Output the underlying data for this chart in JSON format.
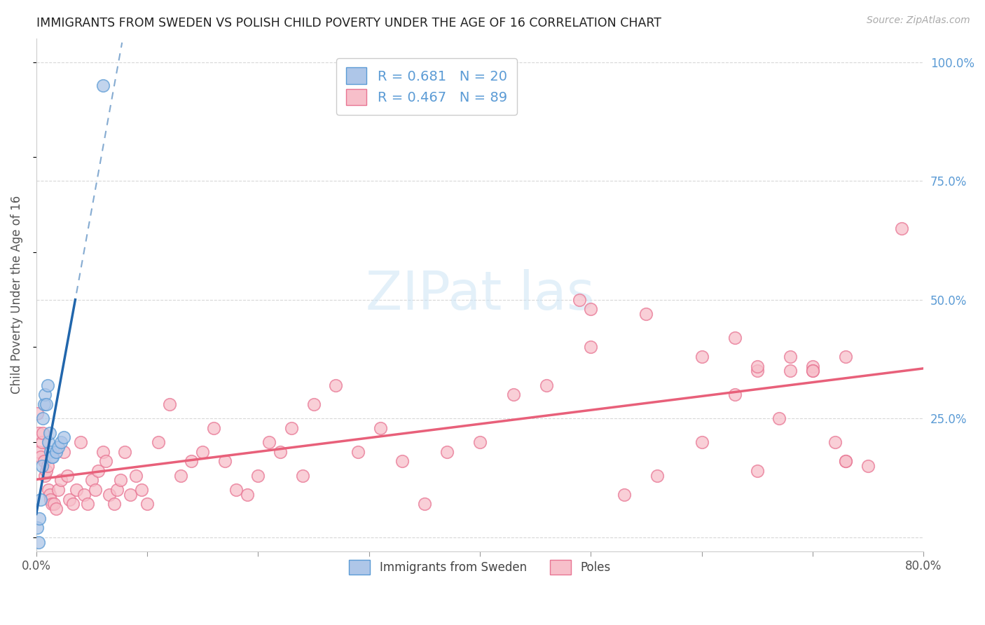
{
  "title": "IMMIGRANTS FROM SWEDEN VS POLISH CHILD POVERTY UNDER THE AGE OF 16 CORRELATION CHART",
  "source": "Source: ZipAtlas.com",
  "ylabel": "Child Poverty Under the Age of 16",
  "x_min": 0.0,
  "x_max": 0.8,
  "y_min": -0.03,
  "y_max": 1.05,
  "y_ticks": [
    0.0,
    0.25,
    0.5,
    0.75,
    1.0
  ],
  "y_tick_labels_right": [
    "",
    "25.0%",
    "50.0%",
    "75.0%",
    "100.0%"
  ],
  "x_ticks": [
    0.0,
    0.1,
    0.2,
    0.3,
    0.4,
    0.5,
    0.6,
    0.7,
    0.8
  ],
  "x_tick_labels_show": [
    "0.0%",
    "",
    "",
    "",
    "",
    "",
    "",
    "",
    "80.0%"
  ],
  "sweden_color": "#aec6e8",
  "sweden_edge_color": "#5b9bd5",
  "poles_color": "#f7bfca",
  "poles_edge_color": "#e87593",
  "sweden_R": 0.681,
  "sweden_N": 20,
  "poles_R": 0.467,
  "poles_N": 89,
  "sweden_line_color": "#2166ac",
  "poles_line_color": "#e8607a",
  "grid_color": "#d8d8d8",
  "background_color": "#ffffff",
  "sweden_points_x": [
    0.001,
    0.002,
    0.003,
    0.004,
    0.005,
    0.006,
    0.007,
    0.008,
    0.009,
    0.01,
    0.011,
    0.012,
    0.013,
    0.014,
    0.015,
    0.018,
    0.02,
    0.022,
    0.025,
    0.06
  ],
  "sweden_points_y": [
    0.02,
    -0.01,
    0.04,
    0.08,
    0.15,
    0.25,
    0.28,
    0.3,
    0.28,
    0.32,
    0.2,
    0.22,
    0.18,
    0.17,
    0.17,
    0.18,
    0.19,
    0.2,
    0.21,
    0.95
  ],
  "poles_points_x": [
    0.001,
    0.002,
    0.003,
    0.004,
    0.005,
    0.006,
    0.007,
    0.008,
    0.009,
    0.01,
    0.011,
    0.012,
    0.013,
    0.014,
    0.016,
    0.018,
    0.02,
    0.022,
    0.025,
    0.028,
    0.03,
    0.033,
    0.036,
    0.04,
    0.043,
    0.046,
    0.05,
    0.053,
    0.056,
    0.06,
    0.063,
    0.066,
    0.07,
    0.073,
    0.076,
    0.08,
    0.085,
    0.09,
    0.095,
    0.1,
    0.11,
    0.12,
    0.13,
    0.14,
    0.15,
    0.16,
    0.17,
    0.18,
    0.19,
    0.2,
    0.21,
    0.22,
    0.23,
    0.24,
    0.25,
    0.27,
    0.29,
    0.31,
    0.33,
    0.35,
    0.37,
    0.4,
    0.43,
    0.46,
    0.49,
    0.5,
    0.53,
    0.56,
    0.6,
    0.63,
    0.65,
    0.67,
    0.7,
    0.73,
    0.5,
    0.55,
    0.6,
    0.65,
    0.68,
    0.7,
    0.72,
    0.73,
    0.75,
    0.63,
    0.65,
    0.68,
    0.7,
    0.73,
    0.78
  ],
  "poles_points_y": [
    0.26,
    0.22,
    0.18,
    0.17,
    0.2,
    0.22,
    0.16,
    0.13,
    0.14,
    0.15,
    0.1,
    0.09,
    0.08,
    0.07,
    0.07,
    0.06,
    0.1,
    0.12,
    0.18,
    0.13,
    0.08,
    0.07,
    0.1,
    0.2,
    0.09,
    0.07,
    0.12,
    0.1,
    0.14,
    0.18,
    0.16,
    0.09,
    0.07,
    0.1,
    0.12,
    0.18,
    0.09,
    0.13,
    0.1,
    0.07,
    0.2,
    0.28,
    0.13,
    0.16,
    0.18,
    0.23,
    0.16,
    0.1,
    0.09,
    0.13,
    0.2,
    0.18,
    0.23,
    0.13,
    0.28,
    0.32,
    0.18,
    0.23,
    0.16,
    0.07,
    0.18,
    0.2,
    0.3,
    0.32,
    0.5,
    0.48,
    0.09,
    0.13,
    0.38,
    0.42,
    0.14,
    0.25,
    0.36,
    0.16,
    0.4,
    0.47,
    0.2,
    0.35,
    0.38,
    0.35,
    0.2,
    0.38,
    0.15,
    0.3,
    0.36,
    0.35,
    0.35,
    0.16,
    0.65
  ]
}
